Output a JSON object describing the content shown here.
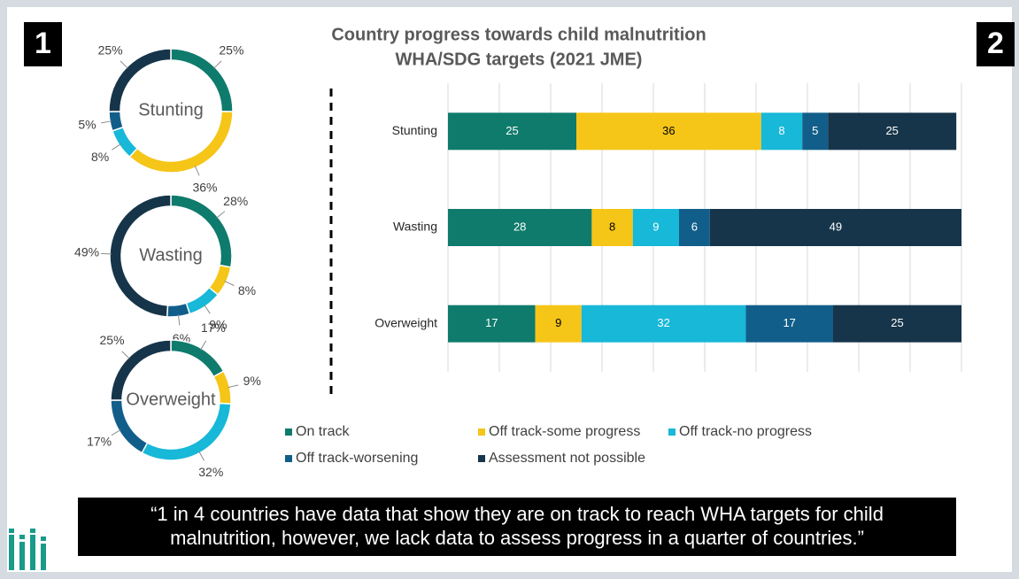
{
  "badges": [
    "1",
    "2"
  ],
  "quote": [
    "“1 in 4 countries have data that show they are on track to reach WHA targets for child",
    "malnutrition, however, we lack data to assess progress in a quarter of countries.”"
  ],
  "chart_data": [
    {
      "type": "pie",
      "donut": true,
      "title": "Stunting",
      "colors": [
        "#0f7b6c",
        "#f5c518",
        "#17b8d8",
        "#125e8a",
        "#16354a"
      ],
      "values": [
        25,
        36,
        8,
        5,
        25
      ],
      "value_labels": [
        "25%",
        "36%",
        "8%",
        "5%",
        "25%"
      ]
    },
    {
      "type": "pie",
      "donut": true,
      "title": "Wasting",
      "colors": [
        "#0f7b6c",
        "#f5c518",
        "#17b8d8",
        "#125e8a",
        "#16354a"
      ],
      "values": [
        28,
        8,
        9,
        6,
        49
      ],
      "value_labels": [
        "28%",
        "8%",
        "9%",
        "6%",
        "49%"
      ]
    },
    {
      "type": "pie",
      "donut": true,
      "title": "Overweight",
      "colors": [
        "#0f7b6c",
        "#f5c518",
        "#17b8d8",
        "#125e8a",
        "#16354a"
      ],
      "values": [
        17,
        9,
        32,
        17,
        25
      ],
      "value_labels": [
        "17%",
        "9%",
        "32%",
        "17%",
        "25%"
      ]
    },
    {
      "type": "bar",
      "orientation": "horizontal",
      "stacked": true,
      "title": [
        "Country progress towards child malnutrition",
        "WHA/SDG targets (2021 JME)"
      ],
      "categories": [
        "Stunting",
        "Wasting",
        "Overweight"
      ],
      "series": [
        {
          "name": "On track",
          "color": "#0f7b6c",
          "values": [
            25,
            28,
            17
          ]
        },
        {
          "name": "Off track-some progress",
          "color": "#f5c518",
          "values": [
            36,
            8,
            9
          ]
        },
        {
          "name": "Off track-no progress",
          "color": "#17b8d8",
          "values": [
            8,
            9,
            32
          ]
        },
        {
          "name": "Off track-worsening",
          "color": "#125e8a",
          "values": [
            5,
            6,
            17
          ]
        },
        {
          "name": "Assessment not possible",
          "color": "#16354a",
          "values": [
            25,
            49,
            25
          ]
        }
      ],
      "xlim": [
        0,
        100
      ],
      "xticks": [
        0,
        10,
        20,
        30,
        40,
        50,
        60,
        70,
        80,
        90,
        100
      ],
      "grid": true,
      "legend": "bottom"
    }
  ]
}
